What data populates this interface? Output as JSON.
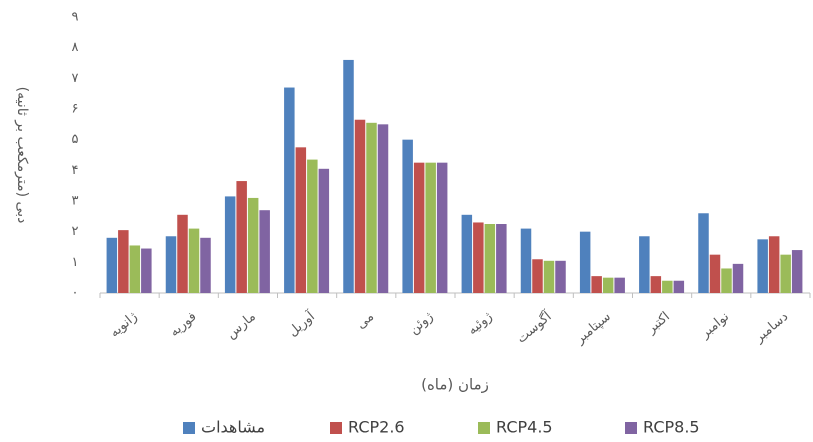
{
  "chart_data": {
    "type": "bar",
    "ylabel": "دبی (مترمکعب بر ثانیه)",
    "xlabel": "زمان (ماه)",
    "categories": [
      "ژانویه",
      "فوریه",
      "مارس",
      "آوریل",
      "می",
      "ژوئن",
      "ژوئیه",
      "آگوست",
      "سپتامبر",
      "اکتبر",
      "نوامبر",
      "دسامبر"
    ],
    "series": [
      {
        "name": "مشاهدات",
        "color": "#4f81bd",
        "values": [
          1.8,
          1.85,
          3.15,
          6.7,
          7.6,
          5.0,
          2.55,
          2.1,
          2.0,
          1.85,
          2.6,
          1.75
        ]
      },
      {
        "name": "RCP2.6",
        "color": "#c0504d",
        "values": [
          2.05,
          2.55,
          3.65,
          4.75,
          5.65,
          4.25,
          2.3,
          1.1,
          0.55,
          0.55,
          1.25,
          1.85
        ]
      },
      {
        "name": "RCP4.5",
        "color": "#9bbb59",
        "values": [
          1.55,
          2.1,
          3.1,
          4.35,
          5.55,
          4.25,
          2.25,
          1.05,
          0.5,
          0.4,
          0.8,
          1.25
        ]
      },
      {
        "name": "RCP8.5",
        "color": "#8064a2",
        "values": [
          1.45,
          1.8,
          2.7,
          4.05,
          5.5,
          4.25,
          2.25,
          1.05,
          0.5,
          0.4,
          0.95,
          1.4
        ]
      }
    ],
    "ylim": [
      0,
      9
    ],
    "yticks": [
      {
        "value": 0,
        "label": "۰"
      },
      {
        "value": 1,
        "label": "۱"
      },
      {
        "value": 2,
        "label": "۲"
      },
      {
        "value": 3,
        "label": "۳"
      },
      {
        "value": 4,
        "label": "۴"
      },
      {
        "value": 5,
        "label": "۵"
      },
      {
        "value": 6,
        "label": "۶"
      },
      {
        "value": 7,
        "label": "۷"
      },
      {
        "value": 8,
        "label": "۸"
      },
      {
        "value": 9,
        "label": "۹"
      }
    ],
    "grid": false,
    "legend": "bottom"
  }
}
